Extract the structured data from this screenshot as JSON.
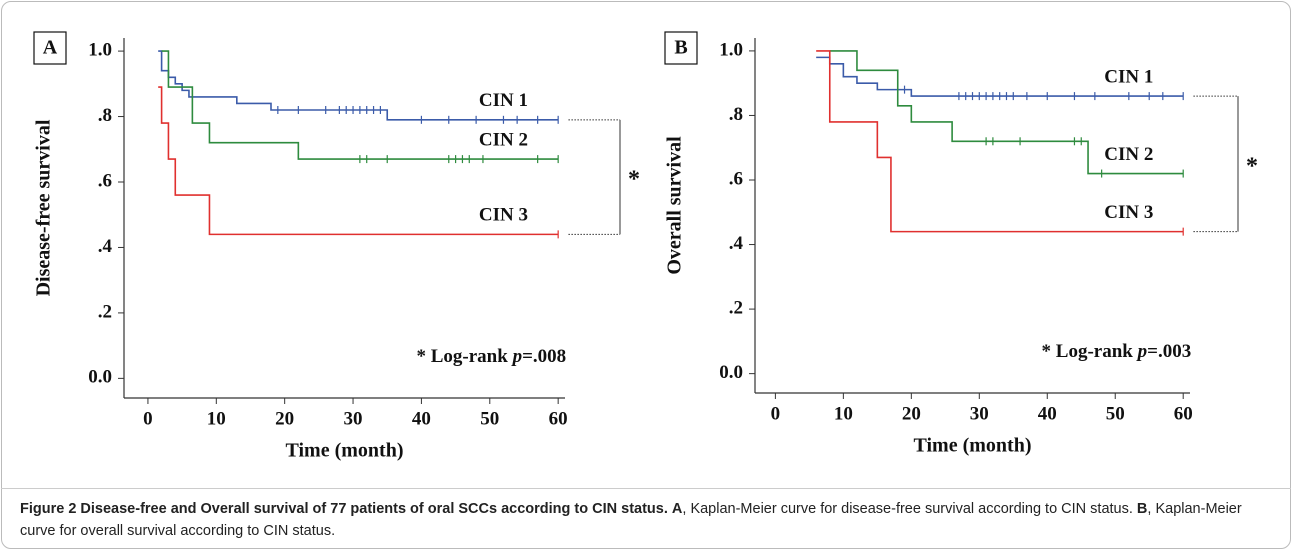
{
  "chart_data": [
    {
      "type": "step",
      "panel": "A",
      "y_label": "Disease-free survival",
      "x_label": "Time (month)",
      "xlim": [
        -3.5,
        61
      ],
      "ylim": [
        -0.06,
        1.04
      ],
      "xticks": [
        0,
        10,
        20,
        30,
        40,
        50,
        60
      ],
      "yticks": [
        {
          "value": 0,
          "label": "0.0"
        },
        {
          "value": 0.2,
          "label": ".2"
        },
        {
          "value": 0.4,
          "label": ".4"
        },
        {
          "value": 0.6,
          "label": ".6"
        },
        {
          "value": 0.8,
          "label": ".8"
        },
        {
          "value": 1.0,
          "label": "1.0"
        }
      ],
      "significance": "*",
      "annotation": {
        "prefix": "* Log-rank ",
        "italic": "p",
        "suffix": "=.008"
      },
      "series": [
        {
          "name": "CIN 1",
          "color": "#3b5ba9",
          "x": [
            1.5,
            2,
            3,
            4,
            5,
            6,
            13,
            18,
            35,
            60
          ],
          "values": [
            1.0,
            0.94,
            0.92,
            0.9,
            0.88,
            0.86,
            0.84,
            0.82,
            0.79,
            0.79
          ],
          "censored": [
            19,
            22,
            26,
            28,
            29,
            30,
            31,
            32,
            33,
            34,
            40,
            44,
            48,
            52,
            54,
            57,
            60
          ]
        },
        {
          "name": "CIN 2",
          "color": "#2e8b3e",
          "x": [
            2,
            3,
            6.5,
            9,
            22,
            60
          ],
          "values": [
            1.0,
            0.89,
            0.78,
            0.72,
            0.67,
            0.67
          ],
          "censored": [
            31,
            32,
            35,
            44,
            45,
            46,
            47,
            49,
            57,
            60
          ]
        },
        {
          "name": "CIN 3",
          "color": "#e0302f",
          "x": [
            1.5,
            2,
            3,
            4,
            9,
            60
          ],
          "values": [
            0.89,
            0.78,
            0.67,
            0.56,
            0.44,
            0.44
          ],
          "censored": [
            60
          ]
        }
      ]
    },
    {
      "type": "step",
      "panel": "B",
      "y_label": "Overall survival",
      "x_label": "Time (month)",
      "xlim": [
        -3,
        61
      ],
      "ylim": [
        -0.06,
        1.04
      ],
      "xticks": [
        0,
        10,
        20,
        30,
        40,
        50,
        60
      ],
      "yticks": [
        {
          "value": 0,
          "label": "0.0"
        },
        {
          "value": 0.2,
          "label": ".2"
        },
        {
          "value": 0.4,
          "label": ".4"
        },
        {
          "value": 0.6,
          "label": ".6"
        },
        {
          "value": 0.8,
          "label": ".8"
        },
        {
          "value": 1.0,
          "label": "1.0"
        }
      ],
      "significance": "*",
      "annotation": {
        "prefix": "* Log-rank ",
        "italic": "p",
        "suffix": "=.003"
      },
      "series": [
        {
          "name": "CIN 1",
          "color": "#3b5ba9",
          "x": [
            6,
            8,
            10,
            12,
            15,
            20,
            60
          ],
          "values": [
            0.98,
            0.96,
            0.92,
            0.9,
            0.88,
            0.86,
            0.86
          ],
          "censored": [
            18,
            19,
            27,
            28,
            29,
            30,
            31,
            32,
            33,
            34,
            35,
            37,
            40,
            44,
            47,
            52,
            55,
            57,
            60
          ]
        },
        {
          "name": "CIN 2",
          "color": "#2e8b3e",
          "x": [
            8,
            12,
            18,
            20,
            26,
            46,
            60
          ],
          "values": [
            1.0,
            0.94,
            0.83,
            0.78,
            0.72,
            0.62,
            0.62
          ],
          "censored": [
            31,
            32,
            36,
            44,
            45,
            48,
            60
          ]
        },
        {
          "name": "CIN 3",
          "color": "#e0302f",
          "x": [
            6,
            8,
            15,
            17,
            60
          ],
          "values": [
            1.0,
            0.78,
            0.67,
            0.44,
            0.44
          ],
          "censored": [
            60
          ]
        }
      ]
    }
  ],
  "caption": {
    "title": "Figure 2 Disease-free and Overall survival of 77 patients of oral SCCs according to CIN status.",
    "a": "A",
    "a_text": ", Kaplan-Meier curve for disease-free survival according to CIN status.",
    "b": "B",
    "b_text": ", Kaplan-Meier curve for overall survival according to CIN status."
  }
}
